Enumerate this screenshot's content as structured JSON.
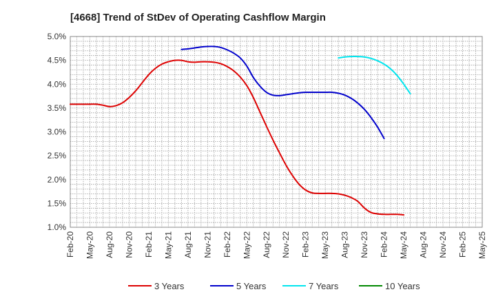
{
  "chart_data": {
    "type": "line",
    "title": "[4668]  Trend of StDev of Operating Cashflow Margin",
    "xlabel": "",
    "ylabel": "",
    "x_ticks": [
      "Feb-20",
      "May-20",
      "Aug-20",
      "Nov-20",
      "Feb-21",
      "May-21",
      "Aug-21",
      "Nov-21",
      "Feb-22",
      "May-22",
      "Aug-22",
      "Nov-22",
      "Feb-23",
      "May-23",
      "Aug-23",
      "Nov-23",
      "Feb-24",
      "May-24",
      "Aug-24",
      "Nov-24",
      "Feb-25",
      "May-25"
    ],
    "y_ticks": [
      "1.0%",
      "1.5%",
      "2.0%",
      "2.5%",
      "3.0%",
      "3.5%",
      "4.0%",
      "4.5%",
      "5.0%"
    ],
    "ylim": [
      1.0,
      5.0
    ],
    "grid": true,
    "legend_position": "bottom",
    "series": [
      {
        "name": "3 Years",
        "color": "#dd0000",
        "points": [
          [
            "Feb-20",
            3.58
          ],
          [
            "Mar-20",
            3.58
          ],
          [
            "Apr-20",
            3.58
          ],
          [
            "May-20",
            3.58
          ],
          [
            "Jun-20",
            3.58
          ],
          [
            "Jul-20",
            3.56
          ],
          [
            "Aug-20",
            3.53
          ],
          [
            "Sep-20",
            3.55
          ],
          [
            "Oct-20",
            3.61
          ],
          [
            "Nov-20",
            3.72
          ],
          [
            "Dec-20",
            3.86
          ],
          [
            "Jan-21",
            4.03
          ],
          [
            "Feb-21",
            4.2
          ],
          [
            "Mar-21",
            4.33
          ],
          [
            "Apr-21",
            4.42
          ],
          [
            "May-21",
            4.47
          ],
          [
            "Jun-21",
            4.5
          ],
          [
            "Jul-21",
            4.5
          ],
          [
            "Aug-21",
            4.47
          ],
          [
            "Sep-21",
            4.46
          ],
          [
            "Oct-21",
            4.47
          ],
          [
            "Nov-21",
            4.47
          ],
          [
            "Dec-21",
            4.46
          ],
          [
            "Jan-22",
            4.43
          ],
          [
            "Feb-22",
            4.37
          ],
          [
            "Mar-22",
            4.28
          ],
          [
            "Apr-22",
            4.15
          ],
          [
            "May-22",
            3.97
          ],
          [
            "Jun-22",
            3.72
          ],
          [
            "Jul-22",
            3.42
          ],
          [
            "Aug-22",
            3.12
          ],
          [
            "Sep-22",
            2.83
          ],
          [
            "Oct-22",
            2.56
          ],
          [
            "Nov-22",
            2.3
          ],
          [
            "Dec-22",
            2.08
          ],
          [
            "Jan-23",
            1.9
          ],
          [
            "Feb-23",
            1.78
          ],
          [
            "Mar-23",
            1.72
          ],
          [
            "Apr-23",
            1.71
          ],
          [
            "May-23",
            1.71
          ],
          [
            "Jun-23",
            1.71
          ],
          [
            "Jul-23",
            1.7
          ],
          [
            "Aug-23",
            1.67
          ],
          [
            "Sep-23",
            1.62
          ],
          [
            "Oct-23",
            1.54
          ],
          [
            "Nov-23",
            1.4
          ],
          [
            "Dec-23",
            1.31
          ],
          [
            "Jan-24",
            1.28
          ],
          [
            "Feb-24",
            1.27
          ],
          [
            "Mar-24",
            1.27
          ],
          [
            "Apr-24",
            1.27
          ],
          [
            "May-24",
            1.26
          ]
        ]
      },
      {
        "name": "5 Years",
        "color": "#0000cc",
        "points": [
          [
            "Jul-21",
            4.73
          ],
          [
            "Aug-21",
            4.74
          ],
          [
            "Sep-21",
            4.76
          ],
          [
            "Oct-21",
            4.78
          ],
          [
            "Nov-21",
            4.79
          ],
          [
            "Dec-21",
            4.79
          ],
          [
            "Jan-22",
            4.77
          ],
          [
            "Feb-22",
            4.72
          ],
          [
            "Mar-22",
            4.65
          ],
          [
            "Apr-22",
            4.55
          ],
          [
            "May-22",
            4.38
          ],
          [
            "Jun-22",
            4.14
          ],
          [
            "Jul-22",
            3.96
          ],
          [
            "Aug-22",
            3.83
          ],
          [
            "Sep-22",
            3.77
          ],
          [
            "Oct-22",
            3.76
          ],
          [
            "Nov-22",
            3.78
          ],
          [
            "Dec-22",
            3.8
          ],
          [
            "Jan-23",
            3.82
          ],
          [
            "Feb-23",
            3.83
          ],
          [
            "Mar-23",
            3.83
          ],
          [
            "Apr-23",
            3.83
          ],
          [
            "May-23",
            3.83
          ],
          [
            "Jun-23",
            3.83
          ],
          [
            "Jul-23",
            3.81
          ],
          [
            "Aug-23",
            3.77
          ],
          [
            "Sep-23",
            3.7
          ],
          [
            "Oct-23",
            3.6
          ],
          [
            "Nov-23",
            3.47
          ],
          [
            "Dec-23",
            3.3
          ],
          [
            "Jan-24",
            3.1
          ],
          [
            "Feb-24",
            2.86
          ]
        ]
      },
      {
        "name": "7 Years",
        "color": "#00e5ee",
        "points": [
          [
            "Jul-23",
            4.55
          ],
          [
            "Aug-23",
            4.57
          ],
          [
            "Sep-23",
            4.58
          ],
          [
            "Oct-23",
            4.58
          ],
          [
            "Nov-23",
            4.57
          ],
          [
            "Dec-23",
            4.54
          ],
          [
            "Jan-24",
            4.49
          ],
          [
            "Feb-24",
            4.42
          ],
          [
            "Mar-24",
            4.32
          ],
          [
            "Apr-24",
            4.18
          ],
          [
            "May-24",
            4.0
          ],
          [
            "Jun-24",
            3.8
          ]
        ]
      },
      {
        "name": "10 Years",
        "color": "#008800",
        "points": []
      }
    ]
  }
}
